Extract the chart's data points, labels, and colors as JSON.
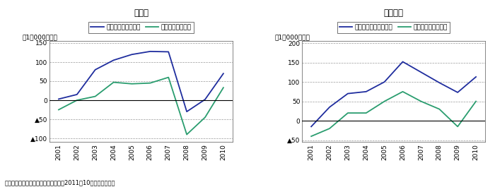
{
  "years": [
    2001,
    2002,
    2003,
    2004,
    2005,
    2006,
    2007,
    2008,
    2009,
    2010
  ],
  "mfg_profit": [
    3,
    15,
    80,
    105,
    120,
    128,
    127,
    -30,
    2,
    70
  ],
  "mfg_retained": [
    -25,
    0,
    10,
    47,
    43,
    45,
    60,
    -90,
    -45,
    33
  ],
  "nonmfg_profit": [
    -15,
    35,
    70,
    75,
    100,
    152,
    125,
    98,
    73,
    113
  ],
  "nonmfg_retained": [
    -40,
    -20,
    20,
    20,
    50,
    75,
    50,
    30,
    -15,
    50
  ],
  "title_left": "製造業",
  "title_right": "非製造業",
  "legend_mfg_profit": "製造業の当期純利益",
  "legend_mfg_retained": "製造業の内部留保",
  "legend_nonmfg_profit": "非製造業の当期純利益",
  "legend_nonmfg_retained": "非製造業の内部留保",
  "ylabel": "（1，000億円）",
  "source": "資料：財務省『法人企業統計調査』（2011年10月）から作成。",
  "color_profit": "#1f2d9e",
  "color_retained": "#2a9d6f",
  "ylim_left": [
    -110,
    155
  ],
  "ylim_right": [
    -55,
    205
  ],
  "yticks_left": [
    -100,
    -50,
    0,
    50,
    100,
    150
  ],
  "yticks_right": [
    -50,
    0,
    50,
    100,
    150,
    200
  ]
}
